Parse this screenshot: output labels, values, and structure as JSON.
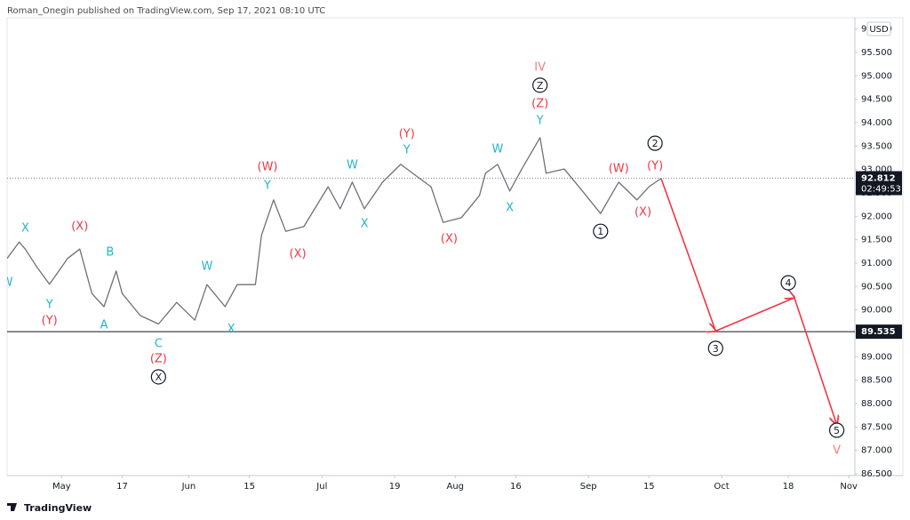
{
  "header": "Roman_Onegin published on TradingView.com, Sep 17, 2021 08:10 UTC",
  "footer": "TradingView",
  "chart_data": {
    "type": "line",
    "currency": "USD",
    "xlim": [
      "2021-04-20",
      "2021-11-02"
    ],
    "xticks": [
      {
        "value": "2021-05-03",
        "label": "May"
      },
      {
        "value": "2021-05-17",
        "label": "17"
      },
      {
        "value": "2021-06-01",
        "label": "Jun"
      },
      {
        "value": "2021-06-15",
        "label": "15"
      },
      {
        "value": "2021-07-01",
        "label": "Jul"
      },
      {
        "value": "2021-07-19",
        "label": "19"
      },
      {
        "value": "2021-08-02",
        "label": "Aug"
      },
      {
        "value": "2021-08-16",
        "label": "16"
      },
      {
        "value": "2021-09-01",
        "label": "Sep"
      },
      {
        "value": "2021-09-15",
        "label": "15"
      },
      {
        "value": "2021-10-01",
        "label": "Oct"
      },
      {
        "value": "2021-10-18",
        "label": "18"
      },
      {
        "value": "2021-11-01",
        "label": "Nov"
      }
    ],
    "ylim": [
      86.462,
      96.24
    ],
    "yticks": [
      {
        "value": 86.5,
        "label": "86.500"
      },
      {
        "value": 87,
        "label": "87.000"
      },
      {
        "value": 87.5,
        "label": "87.500"
      },
      {
        "value": 88,
        "label": "88.000"
      },
      {
        "value": 88.5,
        "label": "88.500"
      },
      {
        "value": 89,
        "label": "89.000"
      },
      {
        "value": 89.5,
        "label": "89.500"
      },
      {
        "value": 90,
        "label": "90.000"
      },
      {
        "value": 90.5,
        "label": "90.500"
      },
      {
        "value": 91,
        "label": "91.000"
      },
      {
        "value": 91.5,
        "label": "91.500"
      },
      {
        "value": 92,
        "label": "92.000"
      },
      {
        "value": 92.5,
        "label": "92.500"
      },
      {
        "value": 93,
        "label": "93.000"
      },
      {
        "value": 93.5,
        "label": "93.500"
      },
      {
        "value": 94,
        "label": "94.000"
      },
      {
        "value": 94.5,
        "label": "94.500"
      },
      {
        "value": 95,
        "label": "95.000"
      },
      {
        "value": 95.5,
        "label": "95.500"
      },
      {
        "value": 96,
        "label": "96.000"
      }
    ],
    "series": [
      {
        "color": "#6f7079",
        "x": [
          "2021-04-20",
          "2021-04-22",
          "2021-04-23",
          "2021-04-27",
          "2021-04-29",
          "2021-05-04",
          "2021-05-06",
          "2021-05-10",
          "2021-05-12",
          "2021-05-14",
          "2021-05-17",
          "2021-05-20",
          "2021-05-25",
          "2021-05-28",
          "2021-06-02",
          "2021-06-04",
          "2021-06-09",
          "2021-06-11",
          "2021-06-16",
          "2021-06-17",
          "2021-06-21",
          "2021-06-23",
          "2021-06-28",
          "2021-07-02",
          "2021-07-06",
          "2021-07-08",
          "2021-07-12",
          "2021-07-15",
          "2021-07-20",
          "2021-07-23",
          "2021-07-27",
          "2021-07-29",
          "2021-08-03",
          "2021-08-06",
          "2021-08-09",
          "2021-08-11",
          "2021-08-13",
          "2021-08-17",
          "2021-08-20",
          "2021-08-23",
          "2021-08-26",
          "2021-08-31",
          "2021-09-03",
          "2021-09-08",
          "2021-09-13",
          "2021-09-15",
          "2021-09-17"
        ],
        "values": [
          91.1,
          91.45,
          91.3,
          90.9,
          90.55,
          91.1,
          91.3,
          90.35,
          90.07,
          90.83,
          90.35,
          89.88,
          89.7,
          90.16,
          89.78,
          90.54,
          90.07,
          90.54,
          90.54,
          91.59,
          92.35,
          91.68,
          91.78,
          92.63,
          92.16,
          92.73,
          92.16,
          92.73,
          93.11,
          92.82,
          92.63,
          91.87,
          91.97,
          92.44,
          92.92,
          93.11,
          92.54,
          93.01,
          93.68,
          92.92,
          93.01,
          92.54,
          92.06,
          92.73,
          92.35,
          92.63,
          92.812
        ]
      },
      {
        "color": "#f23645",
        "x": [
          "2021-09-17",
          "2021-09-30",
          "2021-10-19",
          "2021-10-28"
        ],
        "values": [
          92.812,
          89.55,
          90.26,
          87.55
        ]
      }
    ],
    "last_price": {
      "value": 92.812,
      "label": "92.812",
      "countdown": "02:49:53"
    },
    "levels": [
      {
        "value": 89.535,
        "label": "89.535",
        "color": "#131722"
      }
    ],
    "annotations": [
      {
        "text": "W",
        "color": "#22b5c8",
        "x": "2021-04-20",
        "y": 90.6
      },
      {
        "text": "X",
        "color": "#22b5c8",
        "x": "2021-04-23",
        "y": 91.76
      },
      {
        "text": "Y",
        "color": "#22b5c8",
        "x": "2021-04-29",
        "y": 90.13
      },
      {
        "text": "(Y)",
        "color": "#f23645",
        "x": "2021-04-29",
        "y": 89.78
      },
      {
        "text": "(X)",
        "color": "#f23645",
        "x": "2021-05-06",
        "y": 91.8
      },
      {
        "text": "B",
        "color": "#22b5c8",
        "x": "2021-05-13",
        "y": 91.25
      },
      {
        "text": "A",
        "color": "#22b5c8",
        "x": "2021-05-12",
        "y": 89.69
      },
      {
        "text": "C",
        "color": "#22b5c8",
        "x": "2021-05-25",
        "y": 89.29
      },
      {
        "text": "(Z)",
        "color": "#f23645",
        "x": "2021-05-25",
        "y": 88.97
      },
      {
        "text": "X",
        "color": "#131722",
        "x": "2021-05-25",
        "y": 88.57,
        "circled": true
      },
      {
        "text": "W",
        "color": "#22b5c8",
        "x": "2021-06-04",
        "y": 90.94
      },
      {
        "text": "X",
        "color": "#22b5c8",
        "x": "2021-06-10",
        "y": 89.6
      },
      {
        "text": "(W)",
        "color": "#f23645",
        "x": "2021-06-18",
        "y": 93.07
      },
      {
        "text": "Y",
        "color": "#22b5c8",
        "x": "2021-06-18",
        "y": 92.67
      },
      {
        "text": "(X)",
        "color": "#f23645",
        "x": "2021-06-25",
        "y": 91.21
      },
      {
        "text": "W",
        "color": "#22b5c8",
        "x": "2021-07-08",
        "y": 93.11
      },
      {
        "text": "X",
        "color": "#22b5c8",
        "x": "2021-07-12",
        "y": 91.85
      },
      {
        "text": "(Y)",
        "color": "#f23645",
        "x": "2021-07-21",
        "y": 93.77
      },
      {
        "text": "Y",
        "color": "#22b5c8",
        "x": "2021-07-21",
        "y": 93.43
      },
      {
        "text": "(X)",
        "color": "#f23645",
        "x": "2021-07-30",
        "y": 91.53
      },
      {
        "text": "W",
        "color": "#22b5c8",
        "x": "2021-08-11",
        "y": 93.45
      },
      {
        "text": "X",
        "color": "#22b5c8",
        "x": "2021-08-13",
        "y": 92.2
      },
      {
        "text": "IV",
        "color": "#f07f7f",
        "x": "2021-08-20",
        "y": 95.2
      },
      {
        "text": "Z",
        "color": "#131722",
        "x": "2021-08-20",
        "y": 94.8,
        "circled": true
      },
      {
        "text": "(Z)",
        "color": "#f23645",
        "x": "2021-08-20",
        "y": 94.42
      },
      {
        "text": "Y",
        "color": "#22b5c8",
        "x": "2021-08-20",
        "y": 94.06
      },
      {
        "text": "1",
        "color": "#131722",
        "x": "2021-09-03",
        "y": 91.68,
        "circled": true
      },
      {
        "text": "(W)",
        "color": "#f23645",
        "x": "2021-09-08",
        "y": 93.03
      },
      {
        "text": "(X)",
        "color": "#f23645",
        "x": "2021-09-14",
        "y": 92.1
      },
      {
        "text": "2",
        "color": "#131722",
        "x": "2021-09-16",
        "y": 93.56,
        "circled": true
      },
      {
        "text": "(Y)",
        "color": "#f23645",
        "x": "2021-09-16",
        "y": 93.09
      },
      {
        "text": "3",
        "color": "#131722",
        "x": "2021-09-30",
        "y": 89.18,
        "circled": true
      },
      {
        "text": "4",
        "color": "#131722",
        "x": "2021-10-18",
        "y": 90.58,
        "circled": true
      },
      {
        "text": "5",
        "color": "#131722",
        "x": "2021-10-28",
        "y": 87.43,
        "circled": true
      },
      {
        "text": "V",
        "color": "#f07f7f",
        "x": "2021-10-28",
        "y": 87.01
      }
    ]
  }
}
